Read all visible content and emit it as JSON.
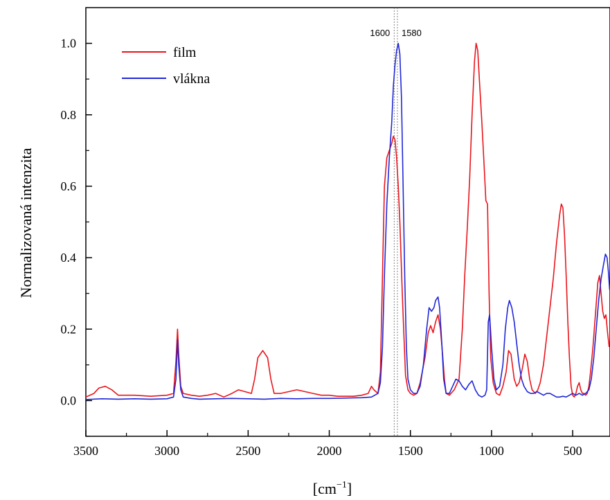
{
  "chart_data": {
    "type": "line",
    "title": "",
    "xlabel": "[cm",
    "xlabel_superscript": "−1",
    "xlabel_close": "]",
    "ylabel": "Normalizovaná intenzita",
    "xlim": [
      3500,
      270
    ],
    "ylim": [
      -0.1,
      1.1
    ],
    "x_reversed": true,
    "x_ticks": [
      3500,
      3000,
      2500,
      2000,
      1500,
      1000,
      500
    ],
    "y_ticks": [
      0.0,
      0.2,
      0.4,
      0.6,
      0.8,
      1.0
    ],
    "x_tick_labels": [
      "3500",
      "3000",
      "2500",
      "2000",
      "1500",
      "1000",
      "500"
    ],
    "y_tick_labels": [
      "0.0",
      "0.2",
      "0.4",
      "0.6",
      "0.8",
      "1.0"
    ],
    "grid": false,
    "legend_position": "top-left",
    "annotations": [
      {
        "x": 1600,
        "label": "1600"
      },
      {
        "x": 1580,
        "label": "1580"
      }
    ],
    "series": [
      {
        "name": "film",
        "color": "#e8141b",
        "points": [
          [
            3500,
            0.01
          ],
          [
            3450,
            0.02
          ],
          [
            3420,
            0.035
          ],
          [
            3380,
            0.04
          ],
          [
            3340,
            0.03
          ],
          [
            3300,
            0.015
          ],
          [
            3200,
            0.015
          ],
          [
            3100,
            0.012
          ],
          [
            3000,
            0.015
          ],
          [
            2960,
            0.02
          ],
          [
            2945,
            0.11
          ],
          [
            2935,
            0.2
          ],
          [
            2928,
            0.13
          ],
          [
            2915,
            0.04
          ],
          [
            2900,
            0.02
          ],
          [
            2850,
            0.015
          ],
          [
            2800,
            0.012
          ],
          [
            2750,
            0.015
          ],
          [
            2700,
            0.02
          ],
          [
            2650,
            0.01
          ],
          [
            2600,
            0.02
          ],
          [
            2560,
            0.03
          ],
          [
            2520,
            0.025
          ],
          [
            2480,
            0.02
          ],
          [
            2460,
            0.06
          ],
          [
            2440,
            0.12
          ],
          [
            2410,
            0.14
          ],
          [
            2380,
            0.12
          ],
          [
            2360,
            0.06
          ],
          [
            2340,
            0.02
          ],
          [
            2300,
            0.02
          ],
          [
            2250,
            0.025
          ],
          [
            2200,
            0.03
          ],
          [
            2150,
            0.025
          ],
          [
            2100,
            0.02
          ],
          [
            2050,
            0.015
          ],
          [
            2000,
            0.015
          ],
          [
            1950,
            0.012
          ],
          [
            1900,
            0.012
          ],
          [
            1850,
            0.012
          ],
          [
            1800,
            0.015
          ],
          [
            1760,
            0.02
          ],
          [
            1740,
            0.04
          ],
          [
            1725,
            0.03
          ],
          [
            1700,
            0.02
          ],
          [
            1685,
            0.08
          ],
          [
            1672,
            0.35
          ],
          [
            1660,
            0.6
          ],
          [
            1645,
            0.68
          ],
          [
            1630,
            0.7
          ],
          [
            1615,
            0.72
          ],
          [
            1605,
            0.74
          ],
          [
            1595,
            0.73
          ],
          [
            1585,
            0.68
          ],
          [
            1575,
            0.6
          ],
          [
            1565,
            0.5
          ],
          [
            1550,
            0.3
          ],
          [
            1540,
            0.18
          ],
          [
            1530,
            0.07
          ],
          [
            1515,
            0.03
          ],
          [
            1500,
            0.02
          ],
          [
            1480,
            0.015
          ],
          [
            1460,
            0.02
          ],
          [
            1440,
            0.05
          ],
          [
            1410,
            0.12
          ],
          [
            1390,
            0.19
          ],
          [
            1375,
            0.21
          ],
          [
            1360,
            0.19
          ],
          [
            1345,
            0.22
          ],
          [
            1330,
            0.24
          ],
          [
            1315,
            0.2
          ],
          [
            1300,
            0.12
          ],
          [
            1290,
            0.06
          ],
          [
            1280,
            0.02
          ],
          [
            1260,
            0.015
          ],
          [
            1230,
            0.03
          ],
          [
            1200,
            0.06
          ],
          [
            1180,
            0.2
          ],
          [
            1165,
            0.35
          ],
          [
            1150,
            0.48
          ],
          [
            1135,
            0.62
          ],
          [
            1120,
            0.8
          ],
          [
            1105,
            0.95
          ],
          [
            1095,
            1.0
          ],
          [
            1085,
            0.98
          ],
          [
            1075,
            0.9
          ],
          [
            1060,
            0.78
          ],
          [
            1045,
            0.65
          ],
          [
            1035,
            0.56
          ],
          [
            1025,
            0.55
          ],
          [
            1015,
            0.3
          ],
          [
            1005,
            0.12
          ],
          [
            990,
            0.05
          ],
          [
            970,
            0.02
          ],
          [
            950,
            0.015
          ],
          [
            930,
            0.04
          ],
          [
            910,
            0.08
          ],
          [
            895,
            0.14
          ],
          [
            880,
            0.13
          ],
          [
            860,
            0.06
          ],
          [
            845,
            0.04
          ],
          [
            830,
            0.05
          ],
          [
            810,
            0.09
          ],
          [
            795,
            0.13
          ],
          [
            780,
            0.11
          ],
          [
            765,
            0.06
          ],
          [
            750,
            0.03
          ],
          [
            730,
            0.02
          ],
          [
            715,
            0.03
          ],
          [
            700,
            0.05
          ],
          [
            680,
            0.1
          ],
          [
            660,
            0.18
          ],
          [
            640,
            0.26
          ],
          [
            620,
            0.34
          ],
          [
            600,
            0.44
          ],
          [
            580,
            0.52
          ],
          [
            570,
            0.55
          ],
          [
            560,
            0.54
          ],
          [
            550,
            0.46
          ],
          [
            540,
            0.35
          ],
          [
            530,
            0.22
          ],
          [
            520,
            0.12
          ],
          [
            510,
            0.04
          ],
          [
            500,
            0.015
          ],
          [
            490,
            0.01
          ],
          [
            480,
            0.02
          ],
          [
            470,
            0.04
          ],
          [
            460,
            0.05
          ],
          [
            450,
            0.03
          ],
          [
            440,
            0.02
          ],
          [
            430,
            0.02
          ],
          [
            420,
            0.015
          ],
          [
            410,
            0.02
          ],
          [
            400,
            0.04
          ],
          [
            390,
            0.08
          ],
          [
            375,
            0.15
          ],
          [
            360,
            0.24
          ],
          [
            345,
            0.33
          ],
          [
            335,
            0.35
          ],
          [
            325,
            0.3
          ],
          [
            315,
            0.25
          ],
          [
            305,
            0.23
          ],
          [
            295,
            0.24
          ],
          [
            285,
            0.19
          ],
          [
            275,
            0.15
          ]
        ]
      },
      {
        "name": "vlákna",
        "color": "#1f26d6",
        "points": [
          [
            3500,
            0.003
          ],
          [
            3400,
            0.005
          ],
          [
            3300,
            0.004
          ],
          [
            3200,
            0.005
          ],
          [
            3100,
            0.004
          ],
          [
            3000,
            0.005
          ],
          [
            2960,
            0.01
          ],
          [
            2945,
            0.06
          ],
          [
            2935,
            0.17
          ],
          [
            2928,
            0.1
          ],
          [
            2915,
            0.03
          ],
          [
            2900,
            0.01
          ],
          [
            2850,
            0.006
          ],
          [
            2800,
            0.004
          ],
          [
            2700,
            0.005
          ],
          [
            2600,
            0.006
          ],
          [
            2500,
            0.005
          ],
          [
            2400,
            0.004
          ],
          [
            2300,
            0.006
          ],
          [
            2200,
            0.005
          ],
          [
            2100,
            0.006
          ],
          [
            2000,
            0.006
          ],
          [
            1900,
            0.007
          ],
          [
            1800,
            0.008
          ],
          [
            1740,
            0.01
          ],
          [
            1720,
            0.015
          ],
          [
            1700,
            0.02
          ],
          [
            1685,
            0.05
          ],
          [
            1672,
            0.15
          ],
          [
            1660,
            0.35
          ],
          [
            1645,
            0.55
          ],
          [
            1630,
            0.68
          ],
          [
            1615,
            0.78
          ],
          [
            1605,
            0.88
          ],
          [
            1595,
            0.94
          ],
          [
            1585,
            0.98
          ],
          [
            1575,
            1.0
          ],
          [
            1565,
            0.97
          ],
          [
            1555,
            0.85
          ],
          [
            1545,
            0.6
          ],
          [
            1535,
            0.35
          ],
          [
            1525,
            0.15
          ],
          [
            1515,
            0.06
          ],
          [
            1500,
            0.03
          ],
          [
            1480,
            0.02
          ],
          [
            1460,
            0.02
          ],
          [
            1440,
            0.04
          ],
          [
            1420,
            0.1
          ],
          [
            1400,
            0.2
          ],
          [
            1385,
            0.26
          ],
          [
            1370,
            0.25
          ],
          [
            1355,
            0.26
          ],
          [
            1345,
            0.28
          ],
          [
            1330,
            0.29
          ],
          [
            1320,
            0.26
          ],
          [
            1305,
            0.15
          ],
          [
            1295,
            0.06
          ],
          [
            1280,
            0.02
          ],
          [
            1260,
            0.02
          ],
          [
            1240,
            0.04
          ],
          [
            1220,
            0.06
          ],
          [
            1200,
            0.055
          ],
          [
            1180,
            0.04
          ],
          [
            1160,
            0.03
          ],
          [
            1140,
            0.045
          ],
          [
            1120,
            0.055
          ],
          [
            1100,
            0.03
          ],
          [
            1080,
            0.015
          ],
          [
            1060,
            0.01
          ],
          [
            1040,
            0.015
          ],
          [
            1030,
            0.03
          ],
          [
            1020,
            0.22
          ],
          [
            1012,
            0.24
          ],
          [
            1000,
            0.15
          ],
          [
            985,
            0.06
          ],
          [
            970,
            0.03
          ],
          [
            950,
            0.04
          ],
          [
            930,
            0.1
          ],
          [
            915,
            0.2
          ],
          [
            900,
            0.26
          ],
          [
            890,
            0.28
          ],
          [
            875,
            0.26
          ],
          [
            860,
            0.22
          ],
          [
            845,
            0.16
          ],
          [
            830,
            0.1
          ],
          [
            815,
            0.06
          ],
          [
            800,
            0.04
          ],
          [
            780,
            0.025
          ],
          [
            760,
            0.02
          ],
          [
            740,
            0.02
          ],
          [
            720,
            0.025
          ],
          [
            700,
            0.02
          ],
          [
            680,
            0.015
          ],
          [
            660,
            0.02
          ],
          [
            640,
            0.02
          ],
          [
            620,
            0.015
          ],
          [
            600,
            0.01
          ],
          [
            580,
            0.01
          ],
          [
            560,
            0.012
          ],
          [
            540,
            0.01
          ],
          [
            520,
            0.015
          ],
          [
            500,
            0.02
          ],
          [
            480,
            0.015
          ],
          [
            460,
            0.02
          ],
          [
            440,
            0.015
          ],
          [
            420,
            0.02
          ],
          [
            400,
            0.03
          ],
          [
            385,
            0.06
          ],
          [
            370,
            0.12
          ],
          [
            355,
            0.2
          ],
          [
            340,
            0.28
          ],
          [
            325,
            0.34
          ],
          [
            310,
            0.38
          ],
          [
            298,
            0.41
          ],
          [
            288,
            0.4
          ],
          [
            280,
            0.36
          ],
          [
            272,
            0.31
          ]
        ]
      }
    ]
  }
}
